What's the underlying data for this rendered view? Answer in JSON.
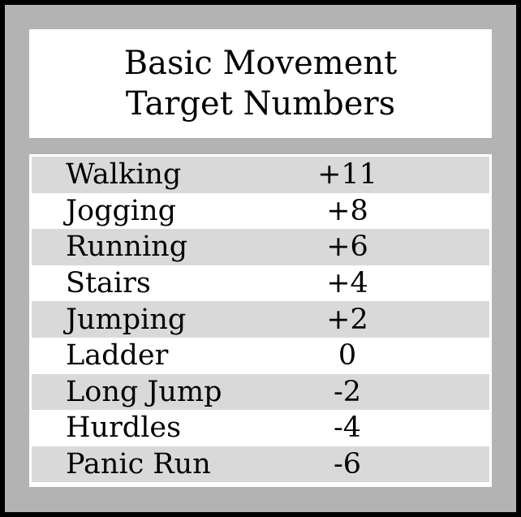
{
  "title": {
    "line1": "Basic Movement",
    "line2": "Target Numbers"
  },
  "rows": [
    {
      "label": "Walking",
      "value": "+11"
    },
    {
      "label": "Jogging",
      "value": "+8"
    },
    {
      "label": "Running",
      "value": "+6"
    },
    {
      "label": "Stairs",
      "value": "+4"
    },
    {
      "label": "Jumping",
      "value": "+2"
    },
    {
      "label": "Ladder",
      "value": "0"
    },
    {
      "label": "Long Jump",
      "value": "-2"
    },
    {
      "label": "Hurdles",
      "value": "-4"
    },
    {
      "label": "Panic Run",
      "value": "-6"
    }
  ],
  "colors": {
    "frame": "#000000",
    "panel": "#b3b3b3",
    "row_shade": "#d9d9d9",
    "row_plain": "#ffffff"
  }
}
